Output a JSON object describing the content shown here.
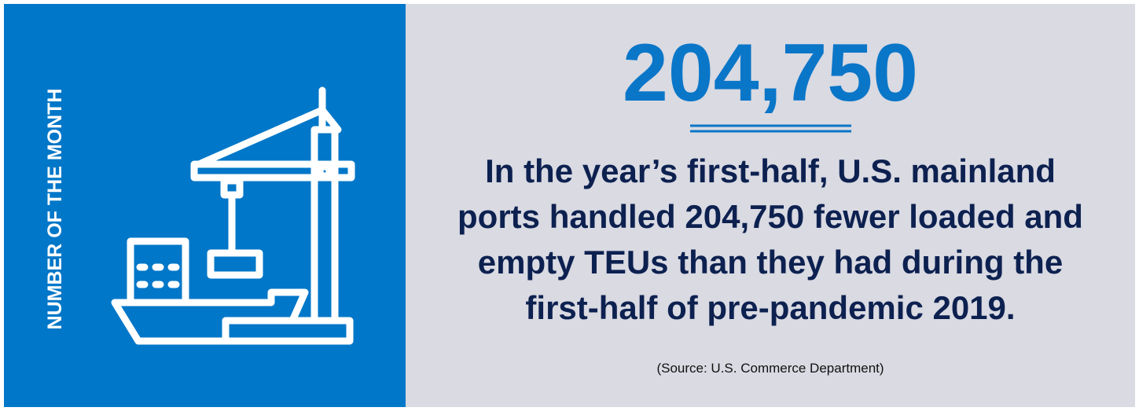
{
  "sidebar_label": "NUMBER OF THE MONTH",
  "headline_number": "204,750",
  "description_lines": [
    "In the year’s first-half, U.S. mainland",
    "ports handled 204,750 fewer loaded and",
    "empty TEUs than they had during the",
    "first-half of pre-pandemic 2019."
  ],
  "source": "(Source: U.S. Commerce Department)"
}
